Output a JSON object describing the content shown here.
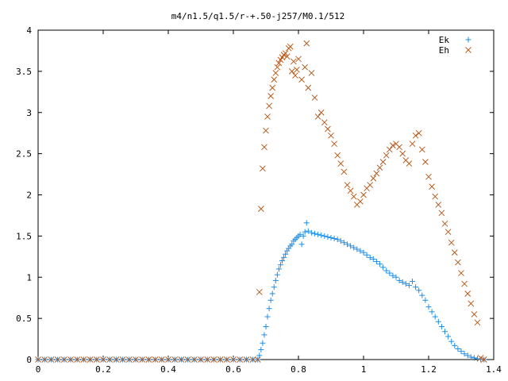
{
  "chart_data": {
    "type": "scatter",
    "title": "m4/n1.5/q1.5/r-+.50-j257/M0.1/512",
    "xlabel": "",
    "ylabel": "",
    "xlim": [
      0,
      1.4
    ],
    "ylim": [
      0,
      4
    ],
    "x_ticks": [
      {
        "value": 0,
        "label": "0"
      },
      {
        "value": 0.2,
        "label": "0.2"
      },
      {
        "value": 0.4,
        "label": "0.4"
      },
      {
        "value": 0.6,
        "label": "0.6"
      },
      {
        "value": 0.8,
        "label": "0.8"
      },
      {
        "value": 1.0,
        "label": "1"
      },
      {
        "value": 1.2,
        "label": "1.2"
      },
      {
        "value": 1.4,
        "label": "1.4"
      }
    ],
    "y_ticks": [
      {
        "value": 0,
        "label": "0"
      },
      {
        "value": 0.5,
        "label": "0.5"
      },
      {
        "value": 1.0,
        "label": "1"
      },
      {
        "value": 1.5,
        "label": "1.5"
      },
      {
        "value": 2.0,
        "label": "2"
      },
      {
        "value": 2.5,
        "label": "2.5"
      },
      {
        "value": 3.0,
        "label": "3"
      },
      {
        "value": 3.5,
        "label": "3.5"
      },
      {
        "value": 4.0,
        "label": "4"
      }
    ],
    "grid": false,
    "legend_position": "top-right",
    "series": [
      {
        "name": "Ek",
        "marker": "plus",
        "color": "#1f8ee8",
        "points": [
          [
            0.0,
            0
          ],
          [
            0.02,
            0
          ],
          [
            0.04,
            0
          ],
          [
            0.06,
            0
          ],
          [
            0.08,
            0
          ],
          [
            0.1,
            0
          ],
          [
            0.12,
            0
          ],
          [
            0.14,
            0
          ],
          [
            0.16,
            0
          ],
          [
            0.18,
            0
          ],
          [
            0.2,
            0
          ],
          [
            0.22,
            0
          ],
          [
            0.24,
            0
          ],
          [
            0.26,
            0
          ],
          [
            0.28,
            0
          ],
          [
            0.3,
            0
          ],
          [
            0.32,
            0
          ],
          [
            0.34,
            0
          ],
          [
            0.36,
            0
          ],
          [
            0.38,
            0
          ],
          [
            0.4,
            0
          ],
          [
            0.42,
            0
          ],
          [
            0.44,
            0
          ],
          [
            0.46,
            0
          ],
          [
            0.48,
            0
          ],
          [
            0.5,
            0
          ],
          [
            0.52,
            0
          ],
          [
            0.54,
            0
          ],
          [
            0.56,
            0
          ],
          [
            0.58,
            0
          ],
          [
            0.6,
            0
          ],
          [
            0.62,
            0
          ],
          [
            0.64,
            0
          ],
          [
            0.66,
            0
          ],
          [
            0.675,
            0.0
          ],
          [
            0.68,
            0.05
          ],
          [
            0.685,
            0.12
          ],
          [
            0.69,
            0.2
          ],
          [
            0.695,
            0.3
          ],
          [
            0.7,
            0.4
          ],
          [
            0.705,
            0.52
          ],
          [
            0.71,
            0.62
          ],
          [
            0.715,
            0.72
          ],
          [
            0.72,
            0.8
          ],
          [
            0.725,
            0.88
          ],
          [
            0.73,
            0.96
          ],
          [
            0.735,
            1.03
          ],
          [
            0.74,
            1.1
          ],
          [
            0.745,
            1.15
          ],
          [
            0.75,
            1.2
          ],
          [
            0.755,
            1.24
          ],
          [
            0.76,
            1.28
          ],
          [
            0.765,
            1.32
          ],
          [
            0.77,
            1.35
          ],
          [
            0.775,
            1.38
          ],
          [
            0.78,
            1.4
          ],
          [
            0.785,
            1.44
          ],
          [
            0.79,
            1.46
          ],
          [
            0.795,
            1.48
          ],
          [
            0.8,
            1.5
          ],
          [
            0.805,
            1.52
          ],
          [
            0.81,
            1.4
          ],
          [
            0.815,
            1.5
          ],
          [
            0.82,
            1.55
          ],
          [
            0.825,
            1.66
          ],
          [
            0.83,
            1.56
          ],
          [
            0.84,
            1.54
          ],
          [
            0.85,
            1.53
          ],
          [
            0.86,
            1.52
          ],
          [
            0.87,
            1.51
          ],
          [
            0.88,
            1.5
          ],
          [
            0.89,
            1.49
          ],
          [
            0.9,
            1.48
          ],
          [
            0.91,
            1.47
          ],
          [
            0.92,
            1.46
          ],
          [
            0.93,
            1.44
          ],
          [
            0.94,
            1.42
          ],
          [
            0.95,
            1.4
          ],
          [
            0.96,
            1.38
          ],
          [
            0.97,
            1.36
          ],
          [
            0.98,
            1.34
          ],
          [
            0.99,
            1.32
          ],
          [
            1.0,
            1.3
          ],
          [
            1.01,
            1.27
          ],
          [
            1.02,
            1.24
          ],
          [
            1.03,
            1.22
          ],
          [
            1.04,
            1.19
          ],
          [
            1.05,
            1.16
          ],
          [
            1.06,
            1.12
          ],
          [
            1.07,
            1.08
          ],
          [
            1.08,
            1.05
          ],
          [
            1.09,
            1.02
          ],
          [
            1.1,
            1.0
          ],
          [
            1.11,
            0.96
          ],
          [
            1.12,
            0.94
          ],
          [
            1.13,
            0.92
          ],
          [
            1.14,
            0.9
          ],
          [
            1.15,
            0.95
          ],
          [
            1.16,
            0.88
          ],
          [
            1.17,
            0.84
          ],
          [
            1.18,
            0.78
          ],
          [
            1.19,
            0.72
          ],
          [
            1.2,
            0.64
          ],
          [
            1.21,
            0.58
          ],
          [
            1.22,
            0.52
          ],
          [
            1.23,
            0.46
          ],
          [
            1.24,
            0.4
          ],
          [
            1.25,
            0.34
          ],
          [
            1.26,
            0.28
          ],
          [
            1.27,
            0.22
          ],
          [
            1.28,
            0.17
          ],
          [
            1.29,
            0.13
          ],
          [
            1.3,
            0.1
          ],
          [
            1.31,
            0.07
          ],
          [
            1.32,
            0.05
          ],
          [
            1.33,
            0.03
          ],
          [
            1.34,
            0.02
          ],
          [
            1.35,
            0.01
          ],
          [
            1.36,
            0.0
          ],
          [
            1.37,
            0.0
          ]
        ]
      },
      {
        "name": "Eh",
        "marker": "cross",
        "color": "#b85a1c",
        "points": [
          [
            0.0,
            0
          ],
          [
            0.02,
            0
          ],
          [
            0.04,
            0
          ],
          [
            0.06,
            0
          ],
          [
            0.08,
            0
          ],
          [
            0.1,
            0
          ],
          [
            0.12,
            0
          ],
          [
            0.14,
            0
          ],
          [
            0.16,
            0
          ],
          [
            0.18,
            0
          ],
          [
            0.2,
            0
          ],
          [
            0.22,
            0
          ],
          [
            0.24,
            0
          ],
          [
            0.26,
            0
          ],
          [
            0.28,
            0
          ],
          [
            0.3,
            0
          ],
          [
            0.32,
            0
          ],
          [
            0.34,
            0
          ],
          [
            0.36,
            0
          ],
          [
            0.38,
            0
          ],
          [
            0.4,
            0
          ],
          [
            0.42,
            0
          ],
          [
            0.44,
            0
          ],
          [
            0.46,
            0
          ],
          [
            0.48,
            0
          ],
          [
            0.5,
            0
          ],
          [
            0.52,
            0
          ],
          [
            0.54,
            0
          ],
          [
            0.56,
            0
          ],
          [
            0.58,
            0
          ],
          [
            0.6,
            0
          ],
          [
            0.62,
            0
          ],
          [
            0.64,
            0
          ],
          [
            0.66,
            0
          ],
          [
            0.675,
            0.0
          ],
          [
            0.68,
            0.82
          ],
          [
            0.685,
            1.83
          ],
          [
            0.69,
            2.32
          ],
          [
            0.695,
            2.58
          ],
          [
            0.7,
            2.78
          ],
          [
            0.705,
            2.95
          ],
          [
            0.71,
            3.08
          ],
          [
            0.715,
            3.2
          ],
          [
            0.72,
            3.3
          ],
          [
            0.725,
            3.4
          ],
          [
            0.73,
            3.48
          ],
          [
            0.735,
            3.55
          ],
          [
            0.74,
            3.6
          ],
          [
            0.745,
            3.64
          ],
          [
            0.75,
            3.67
          ],
          [
            0.755,
            3.7
          ],
          [
            0.76,
            3.72
          ],
          [
            0.765,
            3.68
          ],
          [
            0.77,
            3.78
          ],
          [
            0.775,
            3.8
          ],
          [
            0.78,
            3.5
          ],
          [
            0.785,
            3.62
          ],
          [
            0.79,
            3.45
          ],
          [
            0.795,
            3.52
          ],
          [
            0.8,
            3.65
          ],
          [
            0.81,
            3.4
          ],
          [
            0.82,
            3.55
          ],
          [
            0.825,
            3.84
          ],
          [
            0.83,
            3.3
          ],
          [
            0.84,
            3.48
          ],
          [
            0.85,
            3.18
          ],
          [
            0.86,
            2.95
          ],
          [
            0.87,
            3.0
          ],
          [
            0.88,
            2.88
          ],
          [
            0.89,
            2.8
          ],
          [
            0.9,
            2.72
          ],
          [
            0.91,
            2.62
          ],
          [
            0.92,
            2.48
          ],
          [
            0.93,
            2.38
          ],
          [
            0.94,
            2.28
          ],
          [
            0.95,
            2.12
          ],
          [
            0.96,
            2.05
          ],
          [
            0.97,
            1.98
          ],
          [
            0.98,
            1.88
          ],
          [
            0.99,
            1.92
          ],
          [
            1.0,
            2.0
          ],
          [
            1.01,
            2.08
          ],
          [
            1.02,
            2.12
          ],
          [
            1.03,
            2.2
          ],
          [
            1.04,
            2.26
          ],
          [
            1.05,
            2.33
          ],
          [
            1.06,
            2.4
          ],
          [
            1.07,
            2.48
          ],
          [
            1.08,
            2.55
          ],
          [
            1.09,
            2.6
          ],
          [
            1.1,
            2.62
          ],
          [
            1.11,
            2.58
          ],
          [
            1.12,
            2.5
          ],
          [
            1.13,
            2.42
          ],
          [
            1.14,
            2.38
          ],
          [
            1.15,
            2.62
          ],
          [
            1.16,
            2.72
          ],
          [
            1.17,
            2.75
          ],
          [
            1.18,
            2.55
          ],
          [
            1.19,
            2.4
          ],
          [
            1.2,
            2.22
          ],
          [
            1.21,
            2.1
          ],
          [
            1.22,
            1.98
          ],
          [
            1.23,
            1.88
          ],
          [
            1.24,
            1.78
          ],
          [
            1.25,
            1.65
          ],
          [
            1.26,
            1.55
          ],
          [
            1.27,
            1.42
          ],
          [
            1.28,
            1.3
          ],
          [
            1.29,
            1.18
          ],
          [
            1.3,
            1.05
          ],
          [
            1.31,
            0.92
          ],
          [
            1.32,
            0.8
          ],
          [
            1.33,
            0.68
          ],
          [
            1.34,
            0.55
          ],
          [
            1.35,
            0.45
          ],
          [
            1.36,
            0.02
          ],
          [
            1.37,
            0.0
          ]
        ]
      }
    ]
  }
}
